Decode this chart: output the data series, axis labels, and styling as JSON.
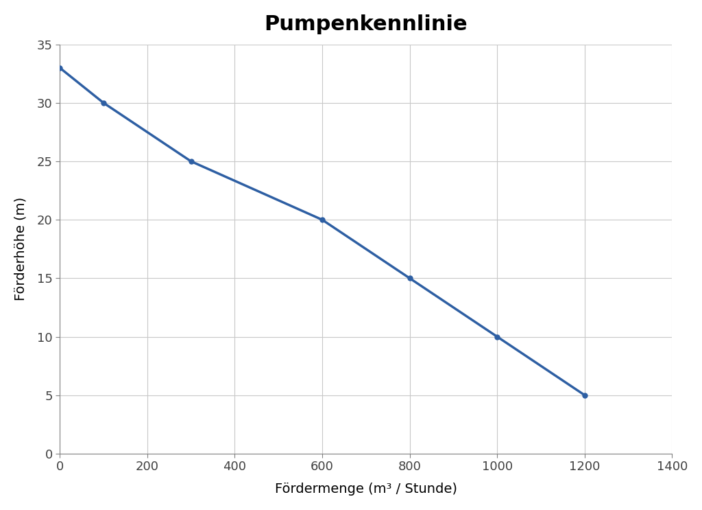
{
  "title": "Pumpenkennlinie",
  "xlabel": "Fördermenge (m³ / Stunde)",
  "ylabel": "Förderhöhe (m)",
  "x_data": [
    0,
    100,
    300,
    600,
    800,
    1000,
    1200
  ],
  "y_data": [
    33,
    30,
    25,
    20,
    15,
    10,
    5
  ],
  "line_color": "#2E5FA3",
  "line_width": 2.5,
  "marker_color": "#2E5FA3",
  "marker_size": 5,
  "xlim": [
    0,
    1400
  ],
  "ylim": [
    0,
    35
  ],
  "xticks": [
    0,
    200,
    400,
    600,
    800,
    1000,
    1200,
    1400
  ],
  "yticks": [
    0,
    5,
    10,
    15,
    20,
    25,
    30,
    35
  ],
  "grid_color": "#C8C8C8",
  "background_color": "#FFFFFF",
  "plot_bg_color": "#FFFFFF",
  "title_fontsize": 22,
  "label_fontsize": 14,
  "tick_fontsize": 13,
  "spine_color": "#808080"
}
